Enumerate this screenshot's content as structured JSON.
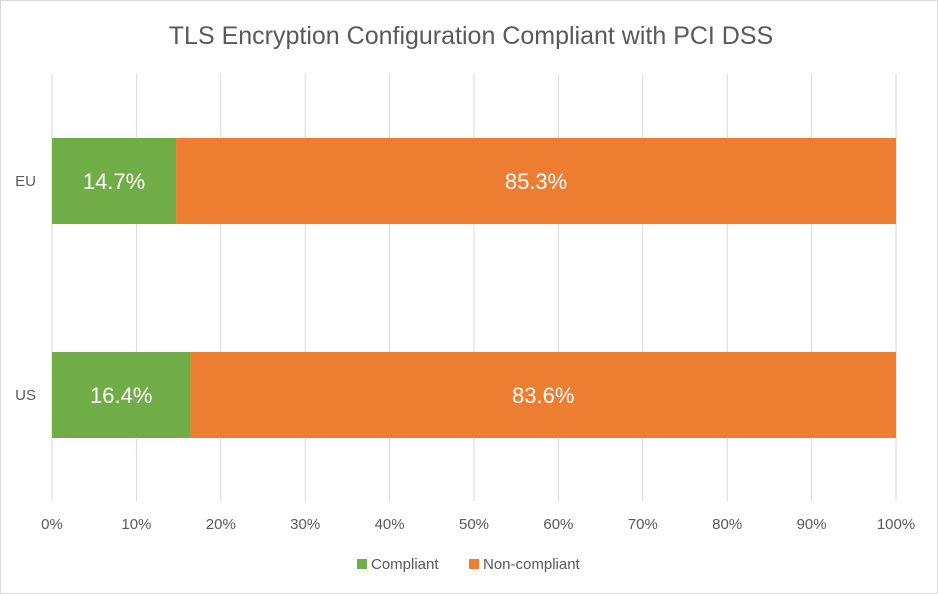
{
  "chart_data": {
    "type": "bar",
    "orientation": "horizontal",
    "stacked": "percent",
    "title": "TLS Encryption Configuration Compliant with PCI DSS",
    "categories": [
      "EU",
      "US"
    ],
    "series": [
      {
        "name": "Compliant",
        "values": [
          14.7,
          16.4
        ],
        "labels": [
          "14.7%",
          "16.4%"
        ],
        "color": "#70ad47"
      },
      {
        "name": "Non-compliant",
        "values": [
          85.3,
          83.6
        ],
        "labels": [
          "85.3%",
          "83.6%"
        ],
        "color": "#ed7d31"
      }
    ],
    "xlim": [
      0,
      100
    ],
    "xticks": [
      "0%",
      "10%",
      "20%",
      "30%",
      "40%",
      "50%",
      "60%",
      "70%",
      "80%",
      "90%",
      "100%"
    ],
    "grid": true,
    "legend": "bottom"
  }
}
